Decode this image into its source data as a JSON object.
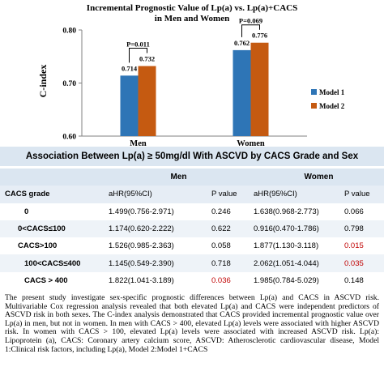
{
  "chart_data": {
    "type": "bar",
    "title_line1": "Incremental Prognostic Value of Lp(a) vs. Lp(a)+CACS",
    "title_line2": "in Men and Women",
    "ylabel": "C-index",
    "ylim": [
      0.6,
      0.8
    ],
    "yticks": [
      0.6,
      0.7,
      0.8
    ],
    "ytick_labels": [
      "0.60",
      "0.70",
      "0.80"
    ],
    "categories": [
      "Men",
      "Women"
    ],
    "series": [
      {
        "name": "Model 1",
        "color": "#2e75b6",
        "values": [
          0.714,
          0.762
        ],
        "labels": [
          "0.714",
          "0.762"
        ]
      },
      {
        "name": "Model 2",
        "color": "#c55a11",
        "values": [
          0.732,
          0.776
        ],
        "labels": [
          "0.732",
          "0.776"
        ]
      }
    ],
    "p_values": [
      "P=0.011",
      "P=0.069"
    ],
    "legend_position": "right"
  },
  "table": {
    "title": "Association Between Lp(a) ≥ 50mg/dl With ASCVD by CACS Grade and Sex",
    "group_men": "Men",
    "group_women": "Women",
    "col_grade": "CACS grade",
    "col_hr": "aHR(95%CI)",
    "col_p": "P value",
    "rows": [
      {
        "grade": "0",
        "men_hr": "1.499(0.756-2.971)",
        "men_p": "0.246",
        "women_hr": "1.638(0.968-2.773)",
        "women_p": "0.066"
      },
      {
        "grade": "0<CACS≤100",
        "men_hr": "1.174(0.620-2.222)",
        "men_p": "0.622",
        "women_hr": "0.916(0.470-1.786)",
        "women_p": "0.798"
      },
      {
        "grade": "CACS>100",
        "men_hr": "1.526(0.985-2.363)",
        "men_p": "0.058",
        "women_hr": "1.877(1.130-3.118)",
        "women_p": "0.015"
      },
      {
        "grade": "100<CACS≤400",
        "men_hr": "1.145(0.549-2.390)",
        "men_p": "0.718",
        "women_hr": "2.062(1.051-4.044)",
        "women_p": "0.035"
      },
      {
        "grade": "CACS > 400",
        "men_hr": "1.822(1.041-3.189)",
        "men_p": "0.036",
        "women_hr": "1.985(0.784-5.029)",
        "women_p": "0.148"
      }
    ],
    "significant_color": "#c00000"
  },
  "description": "The present study investigate sex-specific prognostic differences between Lp(a) and CACS in ASCVD risk. Multivariable Cox regression analysis revealed that both elevated Lp(a) and CACS were independent predictors of ASCVD risk in both sexes. The C-index analysis demonstrated that CACS provided incremental prognostic value over Lp(a) in men, but not in women. In men with CACS > 400, elevated Lp(a) levels were associated with higher ASCVD risk. In women with CACS > 100, elevated Lp(a) levels were associated with increased ASCVD risk. Lp(a): Lipoprotein (a), CACS: Coronary artery calcium score, ASCVD: Atherosclerotic cardiovascular disease, Model 1:Clinical risk factors, including Lp(a), Model 2:Model 1+CACS"
}
